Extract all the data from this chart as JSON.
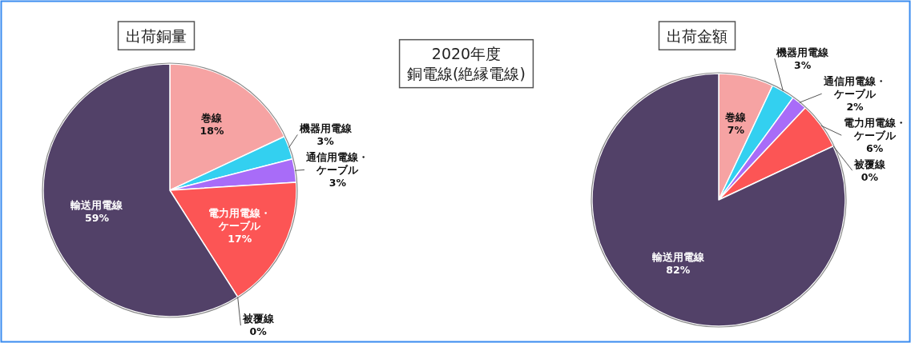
{
  "chart_data": [
    {
      "type": "pie",
      "title": "出荷銅量",
      "categories": [
        "巻線",
        "機器用電線",
        "通信用電線・ケーブル",
        "電力用電線・ケーブル",
        "被覆線",
        "輸送用電線"
      ],
      "values": [
        18,
        3,
        3,
        17,
        0,
        59
      ],
      "value_labels": [
        "18%",
        "3%",
        "3%",
        "17%",
        "0%",
        "59%"
      ],
      "colors": [
        "#f6a3a3",
        "#33d0f0",
        "#a86cf8",
        "#fc5555",
        "#9a9a9a",
        "#524168"
      ]
    },
    {
      "type": "other",
      "title": "2020年度",
      "subtitle": "銅電線(絶縁電線)"
    },
    {
      "type": "pie",
      "title": "出荷金額",
      "categories": [
        "巻線",
        "機器用電線",
        "通信用電線・ケーブル",
        "電力用電線・ケーブル",
        "被覆線",
        "輸送用電線"
      ],
      "values": [
        7,
        3,
        2,
        6,
        0,
        82
      ],
      "value_labels": [
        "7%",
        "3%",
        "2%",
        "6%",
        "0%",
        "82%"
      ],
      "colors": [
        "#f6a3a3",
        "#33d0f0",
        "#a86cf8",
        "#fc5555",
        "#9a9a9a",
        "#524168"
      ]
    }
  ]
}
